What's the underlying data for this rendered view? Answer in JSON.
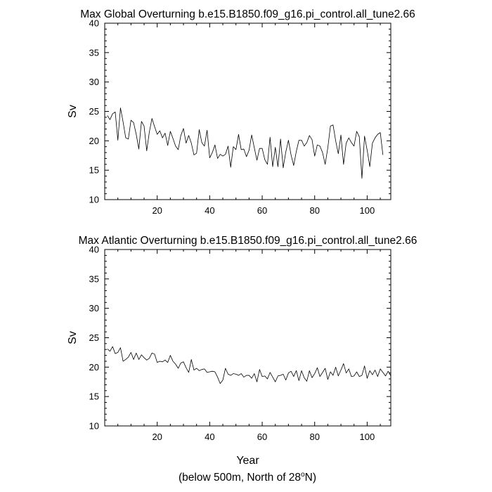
{
  "chart_data": [
    {
      "type": "line",
      "title": "Max Global Overturning b.e15.B1850.f09_g16.pi_control.all_tune2.66",
      "xlabel": "",
      "ylabel": "Sv",
      "xlim": [
        0,
        109
      ],
      "ylim": [
        10,
        40
      ],
      "xticks": [
        20,
        40,
        60,
        80,
        100
      ],
      "yticks": [
        10,
        15,
        20,
        25,
        30,
        35,
        40
      ],
      "grid": false,
      "x_start": 1,
      "values": [
        24.3,
        23.6,
        24.6,
        24.9,
        20.1,
        25.6,
        23.2,
        20.5,
        20.3,
        23.5,
        23.1,
        21.1,
        18.6,
        23.3,
        22.5,
        18.3,
        21.5,
        23.8,
        22.4,
        21.1,
        21.7,
        20.5,
        21.3,
        19.2,
        21.6,
        20.4,
        19.1,
        18.5,
        20.9,
        22.1,
        19.6,
        20.9,
        19.6,
        17.6,
        17.9,
        21.9,
        19.7,
        19.1,
        21.8,
        17.1,
        18.0,
        19.3,
        17.0,
        17.7,
        17.4,
        17.7,
        19.1,
        15.5,
        19.0,
        18.5,
        21.1,
        18.5,
        18.6,
        17.3,
        18.4,
        21.0,
        18.8,
        16.7,
        18.7,
        18.7,
        16.8,
        16.0,
        20.6,
        15.6,
        18.9,
        15.6,
        20.3,
        15.4,
        18.1,
        20.1,
        17.6,
        15.8,
        18.2,
        20.1,
        20.1,
        19.1,
        19.7,
        20.9,
        20.2,
        17.4,
        19.3,
        19.1,
        18.0,
        16.0,
        18.8,
        22.5,
        22.7,
        20.0,
        17.8,
        21.0,
        16.0,
        19.6,
        20.5,
        19.7,
        19.1,
        21.6,
        20.7,
        13.6,
        20.8,
        18.4,
        15.6,
        19.6,
        20.5,
        21.1,
        21.4,
        17.6
      ]
    },
    {
      "type": "line",
      "title": "Max Atlantic Overturning b.e15.B1850.f09_g16.pi_control.all_tune2.66",
      "xlabel": "Year",
      "ylabel": "Sv",
      "xlim": [
        0,
        109
      ],
      "ylim": [
        10,
        40
      ],
      "xticks": [
        20,
        40,
        60,
        80,
        100
      ],
      "yticks": [
        10,
        15,
        20,
        25,
        30,
        35,
        40
      ],
      "grid": false,
      "x_start": 1,
      "values": [
        23.1,
        22.7,
        23.5,
        22.3,
        22.5,
        23.3,
        21.0,
        21.3,
        21.7,
        22.5,
        21.3,
        22.4,
        21.3,
        22.1,
        21.6,
        21.2,
        21.5,
        22.4,
        22.2,
        20.8,
        21.0,
        20.9,
        21.2,
        20.8,
        22.0,
        21.0,
        20.5,
        19.8,
        20.7,
        20.9,
        19.9,
        19.1,
        21.3,
        19.5,
        19.8,
        19.4,
        19.6,
        19.7,
        19.1,
        19.2,
        19.3,
        19.2,
        18.3,
        17.2,
        17.8,
        19.8,
        18.8,
        18.6,
        18.9,
        18.8,
        18.6,
        18.9,
        18.3,
        18.6,
        18.6,
        18.1,
        18.9,
        17.5,
        19.6,
        18.4,
        18.5,
        18.0,
        19.1,
        18.3,
        17.5,
        18.5,
        18.6,
        18.8,
        17.8,
        19.0,
        19.3,
        18.4,
        19.4,
        17.7,
        19.4,
        18.2,
        17.6,
        19.4,
        18.2,
        18.9,
        19.9,
        18.4,
        19.1,
        19.8,
        17.9,
        19.2,
        18.6,
        20.0,
        18.5,
        19.5,
        20.6,
        19.0,
        19.7,
        18.4,
        18.5,
        19.2,
        18.4,
        18.6,
        20.2,
        18.1,
        19.4,
        18.7,
        19.5,
        18.4,
        19.7,
        19.1,
        18.5,
        19.3,
        18.5
      ]
    }
  ],
  "footnote": {
    "prefix": "(below 500m, North of 28",
    "superscript": "o",
    "suffix": "N)"
  }
}
